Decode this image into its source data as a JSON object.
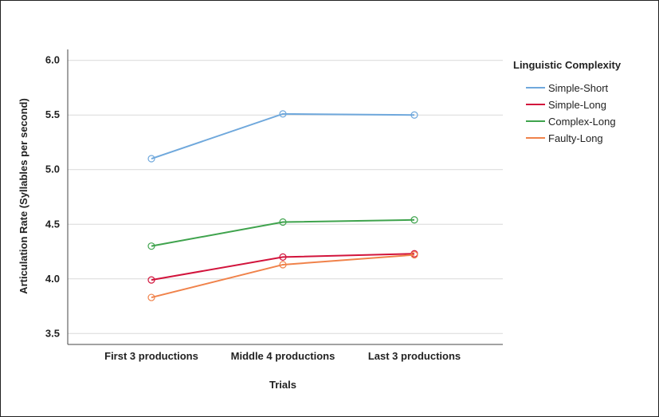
{
  "chart_data": {
    "type": "line",
    "xlabel": "Trials",
    "ylabel": "Articulation Rate (Syllables per second)",
    "categories": [
      "First 3 productions",
      "Middle 4 productions",
      "Last 3 productions"
    ],
    "ylim": [
      3.4,
      6.1
    ],
    "yticks": [
      "3.5",
      "4.0",
      "4.5",
      "5.0",
      "5.5",
      "6.0"
    ],
    "grid": true,
    "legend_title": "Linguistic Complexity",
    "legend_position": "right",
    "series": [
      {
        "name": "Simple-Short",
        "color": "#6fa8dc",
        "values": [
          5.1,
          5.51,
          5.5
        ]
      },
      {
        "name": "Simple-Long",
        "color": "#d2143c",
        "values": [
          3.99,
          4.2,
          4.23
        ]
      },
      {
        "name": "Complex-Long",
        "color": "#3fa34d",
        "values": [
          4.3,
          4.52,
          4.54
        ]
      },
      {
        "name": "Faulty-Long",
        "color": "#f0824a",
        "values": [
          3.83,
          4.13,
          4.22
        ]
      }
    ]
  }
}
